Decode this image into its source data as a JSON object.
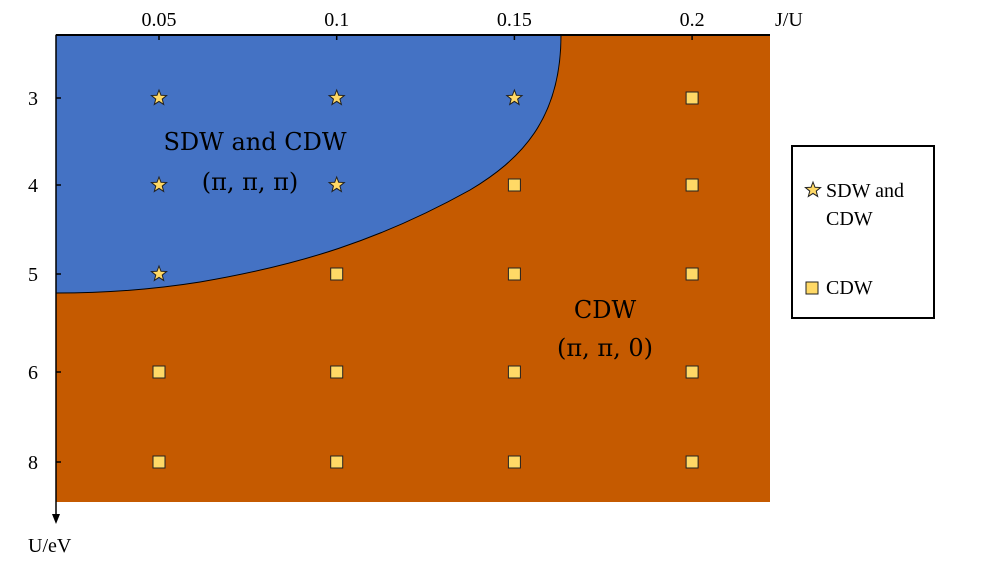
{
  "chart_data": {
    "type": "scatter",
    "x_axis": {
      "label": "J/U",
      "position": "top",
      "ticks": [
        "0.05",
        "0.1",
        "0.15",
        "0.2"
      ]
    },
    "y_axis": {
      "label": "U/eV",
      "position": "left",
      "direction": "downward",
      "ticks": [
        "3",
        "4",
        "5",
        "6",
        "8"
      ]
    },
    "regions": [
      {
        "name": "SDW and CDW",
        "sublabel": "(π, π, π)",
        "color": "#4472c4"
      },
      {
        "name": "CDW",
        "sublabel": "(π, π, 0)",
        "color": "#c55a00"
      }
    ],
    "series": [
      {
        "name": "SDW and CDW",
        "legend_label_line1": "SDW and",
        "legend_label_line2": "CDW",
        "marker": "star",
        "points": [
          {
            "x": "0.05",
            "y": "3"
          },
          {
            "x": "0.1",
            "y": "3"
          },
          {
            "x": "0.15",
            "y": "3"
          },
          {
            "x": "0.05",
            "y": "4"
          },
          {
            "x": "0.1",
            "y": "4"
          },
          {
            "x": "0.05",
            "y": "5"
          }
        ]
      },
      {
        "name": "CDW",
        "legend_label_line1": "CDW",
        "marker": "square",
        "points": [
          {
            "x": "0.2",
            "y": "3"
          },
          {
            "x": "0.15",
            "y": "4"
          },
          {
            "x": "0.2",
            "y": "4"
          },
          {
            "x": "0.1",
            "y": "5"
          },
          {
            "x": "0.15",
            "y": "5"
          },
          {
            "x": "0.2",
            "y": "5"
          },
          {
            "x": "0.05",
            "y": "6"
          },
          {
            "x": "0.1",
            "y": "6"
          },
          {
            "x": "0.15",
            "y": "6"
          },
          {
            "x": "0.2",
            "y": "6"
          },
          {
            "x": "0.05",
            "y": "8"
          },
          {
            "x": "0.1",
            "y": "8"
          },
          {
            "x": "0.15",
            "y": "8"
          },
          {
            "x": "0.2",
            "y": "8"
          }
        ]
      }
    ],
    "marker_color": "#ffd966",
    "legend_placement": "right",
    "grid": false
  }
}
